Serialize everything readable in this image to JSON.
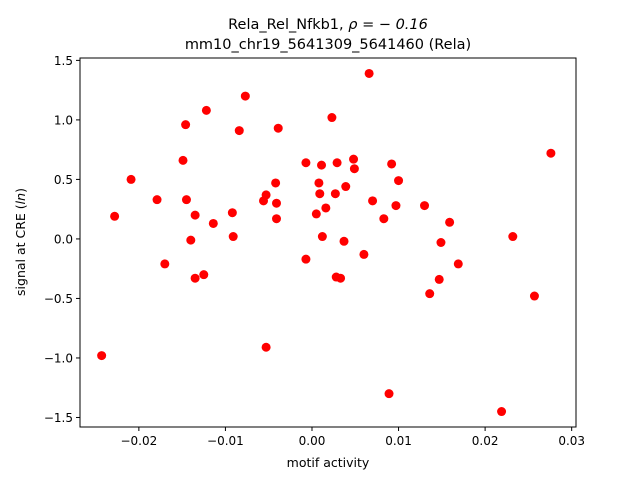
{
  "chart_data": {
    "type": "scatter",
    "title_line1": "Rela_Rel_Nfkb1, ",
    "title_rho": "ρ = − 0.16",
    "title_line2": "mm10_chr19_5641309_5641460 (Rela)",
    "xlabel": "motif activity",
    "ylabel_prefix": "signal at CRE (",
    "ylabel_italic": "ln",
    "ylabel_suffix": ")",
    "xlim": [
      -0.0268,
      0.0305
    ],
    "ylim": [
      -1.58,
      1.52
    ],
    "xticks": [
      {
        "value": -0.02,
        "label": "−0.02"
      },
      {
        "value": -0.01,
        "label": "−0.01"
      },
      {
        "value": 0.0,
        "label": "0.00"
      },
      {
        "value": 0.01,
        "label": "0.01"
      },
      {
        "value": 0.02,
        "label": "0.02"
      },
      {
        "value": 0.03,
        "label": "0.03"
      }
    ],
    "yticks": [
      {
        "value": -1.5,
        "label": "−1.5"
      },
      {
        "value": -1.0,
        "label": "−1.0"
      },
      {
        "value": -0.5,
        "label": "−0.5"
      },
      {
        "value": 0.0,
        "label": "0.0"
      },
      {
        "value": 0.5,
        "label": "0.5"
      },
      {
        "value": 1.0,
        "label": "1.0"
      },
      {
        "value": 1.5,
        "label": "1.5"
      }
    ],
    "grid": false,
    "marker_color": "#ff0000",
    "points": [
      {
        "x": -0.0243,
        "y": -0.98
      },
      {
        "x": -0.0228,
        "y": 0.19
      },
      {
        "x": -0.0209,
        "y": 0.5
      },
      {
        "x": -0.0179,
        "y": 0.33
      },
      {
        "x": -0.017,
        "y": -0.21
      },
      {
        "x": -0.0149,
        "y": 0.66
      },
      {
        "x": -0.0146,
        "y": 0.96
      },
      {
        "x": -0.0145,
        "y": 0.33
      },
      {
        "x": -0.014,
        "y": -0.01
      },
      {
        "x": -0.0135,
        "y": 0.2
      },
      {
        "x": -0.0135,
        "y": -0.33
      },
      {
        "x": -0.0125,
        "y": -0.3
      },
      {
        "x": -0.0122,
        "y": 1.08
      },
      {
        "x": -0.0114,
        "y": 0.13
      },
      {
        "x": -0.0092,
        "y": 0.22
      },
      {
        "x": -0.0091,
        "y": 0.02
      },
      {
        "x": -0.0084,
        "y": 0.91
      },
      {
        "x": -0.0077,
        "y": 1.2
      },
      {
        "x": -0.0056,
        "y": 0.32
      },
      {
        "x": -0.0053,
        "y": 0.37
      },
      {
        "x": -0.0053,
        "y": -0.91
      },
      {
        "x": -0.0042,
        "y": 0.47
      },
      {
        "x": -0.0041,
        "y": 0.3
      },
      {
        "x": -0.0041,
        "y": 0.17
      },
      {
        "x": -0.0039,
        "y": 0.93
      },
      {
        "x": -0.0007,
        "y": 0.64
      },
      {
        "x": -0.0007,
        "y": -0.17
      },
      {
        "x": 0.0005,
        "y": 0.21
      },
      {
        "x": 0.0008,
        "y": 0.47
      },
      {
        "x": 0.0009,
        "y": 0.38
      },
      {
        "x": 0.0011,
        "y": 0.62
      },
      {
        "x": 0.0012,
        "y": 0.02
      },
      {
        "x": 0.0016,
        "y": 0.26
      },
      {
        "x": 0.0023,
        "y": 1.02
      },
      {
        "x": 0.0027,
        "y": 0.38
      },
      {
        "x": 0.0028,
        "y": -0.32
      },
      {
        "x": 0.0029,
        "y": 0.64
      },
      {
        "x": 0.0033,
        "y": -0.33
      },
      {
        "x": 0.0037,
        "y": -0.02
      },
      {
        "x": 0.0039,
        "y": 0.44
      },
      {
        "x": 0.0048,
        "y": 0.67
      },
      {
        "x": 0.0049,
        "y": 0.59
      },
      {
        "x": 0.006,
        "y": -0.13
      },
      {
        "x": 0.0066,
        "y": 1.39
      },
      {
        "x": 0.007,
        "y": 0.32
      },
      {
        "x": 0.0083,
        "y": 0.17
      },
      {
        "x": 0.0089,
        "y": -1.3
      },
      {
        "x": 0.0092,
        "y": 0.63
      },
      {
        "x": 0.0097,
        "y": 0.28
      },
      {
        "x": 0.01,
        "y": 0.49
      },
      {
        "x": 0.013,
        "y": 0.28
      },
      {
        "x": 0.0136,
        "y": -0.46
      },
      {
        "x": 0.0147,
        "y": -0.34
      },
      {
        "x": 0.0149,
        "y": -0.03
      },
      {
        "x": 0.0159,
        "y": 0.14
      },
      {
        "x": 0.0169,
        "y": -0.21
      },
      {
        "x": 0.0219,
        "y": -1.45
      },
      {
        "x": 0.0232,
        "y": 0.02
      },
      {
        "x": 0.0257,
        "y": -0.48
      },
      {
        "x": 0.0276,
        "y": 0.72
      }
    ]
  }
}
